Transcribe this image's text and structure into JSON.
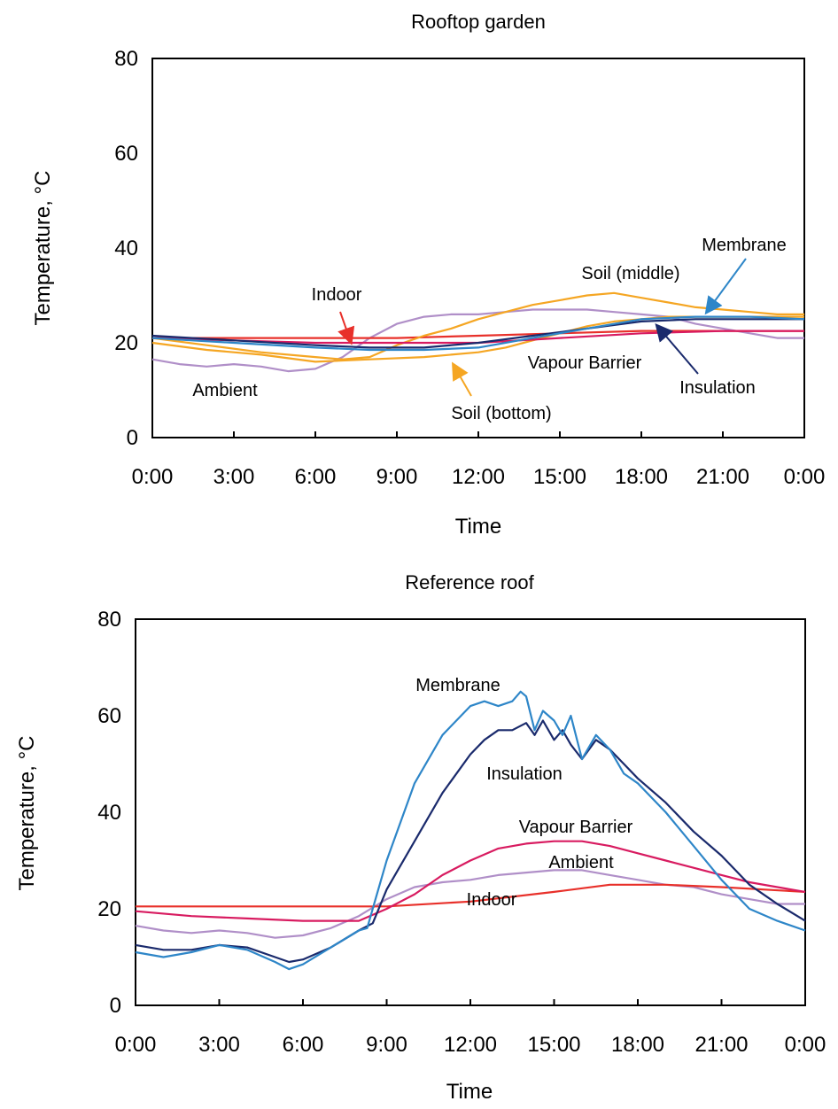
{
  "chart_data": [
    {
      "type": "line",
      "title": "Rooftop garden",
      "xlabel": "Time",
      "ylabel": "Temperature, °C",
      "ylim": [
        0,
        80
      ],
      "yticks": [
        "0",
        "20",
        "40",
        "60",
        "80"
      ],
      "xticks": [
        "0:00",
        "3:00",
        "6:00",
        "9:00",
        "12:00",
        "15:00",
        "18:00",
        "21:00",
        "0:00"
      ],
      "grid": false,
      "legend": "none (inline labels with arrows)",
      "series": [
        {
          "name": "Ambient",
          "color": "#b08fc8",
          "points": [
            [
              0,
              16.5
            ],
            [
              1,
              15.5
            ],
            [
              2,
              15
            ],
            [
              3,
              15.5
            ],
            [
              4,
              15
            ],
            [
              5,
              14
            ],
            [
              6,
              14.5
            ],
            [
              7,
              17
            ],
            [
              8,
              21
            ],
            [
              9,
              24
            ],
            [
              10,
              25.5
            ],
            [
              11,
              26
            ],
            [
              12,
              26
            ],
            [
              13,
              26.5
            ],
            [
              14,
              27
            ],
            [
              15,
              27
            ],
            [
              16,
              27
            ],
            [
              17,
              26.5
            ],
            [
              18,
              26
            ],
            [
              19,
              25.5
            ],
            [
              20,
              24
            ],
            [
              21,
              23
            ],
            [
              22,
              22
            ],
            [
              23,
              21
            ],
            [
              24,
              21
            ]
          ]
        },
        {
          "name": "Indoor",
          "color": "#e8302a",
          "points": [
            [
              0,
              21
            ],
            [
              3,
              21
            ],
            [
              6,
              21
            ],
            [
              9,
              21
            ],
            [
              12,
              21.5
            ],
            [
              15,
              22
            ],
            [
              18,
              22.5
            ],
            [
              21,
              22.5
            ],
            [
              24,
              22.5
            ]
          ]
        },
        {
          "name": "Soil (bottom)",
          "color": "#f5a623",
          "points": [
            [
              0,
              20
            ],
            [
              2,
              18.5
            ],
            [
              4,
              17.5
            ],
            [
              6,
              16
            ],
            [
              8,
              16.5
            ],
            [
              10,
              17
            ],
            [
              11,
              17.5
            ],
            [
              12,
              18
            ],
            [
              13,
              19
            ],
            [
              14,
              20.5
            ],
            [
              15,
              22
            ],
            [
              16,
              23.5
            ],
            [
              17,
              24.5
            ],
            [
              18,
              25
            ],
            [
              19,
              25.5
            ],
            [
              20,
              25.5
            ],
            [
              21,
              25.5
            ],
            [
              22,
              25.5
            ],
            [
              23,
              25.5
            ],
            [
              24,
              25.5
            ]
          ]
        },
        {
          "name": "Soil (middle)",
          "color": "#f5a623",
          "points": [
            [
              0,
              21
            ],
            [
              2,
              19.5
            ],
            [
              4,
              18
            ],
            [
              6,
              17
            ],
            [
              7,
              16.5
            ],
            [
              8,
              17
            ],
            [
              9,
              19.5
            ],
            [
              10,
              21.5
            ],
            [
              11,
              23
            ],
            [
              12,
              25
            ],
            [
              13,
              26.5
            ],
            [
              14,
              28
            ],
            [
              15,
              29
            ],
            [
              16,
              30
            ],
            [
              17,
              30.5
            ],
            [
              18,
              29.5
            ],
            [
              19,
              28.5
            ],
            [
              20,
              27.5
            ],
            [
              21,
              27
            ],
            [
              22,
              26.5
            ],
            [
              23,
              26
            ],
            [
              24,
              26
            ]
          ]
        },
        {
          "name": "Vapour Barrier",
          "color": "#d81b60",
          "points": [
            [
              0,
              21
            ],
            [
              3,
              20.5
            ],
            [
              6,
              20
            ],
            [
              9,
              20
            ],
            [
              12,
              20
            ],
            [
              15,
              21
            ],
            [
              18,
              22
            ],
            [
              21,
              22.5
            ],
            [
              24,
              22.5
            ]
          ]
        },
        {
          "name": "Insulation",
          "color": "#1a2a6c",
          "points": [
            [
              0,
              21.5
            ],
            [
              3,
              20.5
            ],
            [
              6,
              19.5
            ],
            [
              8,
              19
            ],
            [
              10,
              19
            ],
            [
              12,
              20
            ],
            [
              14,
              21.5
            ],
            [
              16,
              23
            ],
            [
              18,
              24.5
            ],
            [
              20,
              25
            ],
            [
              22,
              25
            ],
            [
              24,
              25
            ]
          ]
        },
        {
          "name": "Membrane",
          "color": "#2e86c8",
          "points": [
            [
              0,
              21
            ],
            [
              3,
              20
            ],
            [
              6,
              19
            ],
            [
              8,
              18.5
            ],
            [
              10,
              18.5
            ],
            [
              12,
              19
            ],
            [
              14,
              21
            ],
            [
              16,
              23
            ],
            [
              18,
              25
            ],
            [
              20,
              25.5
            ],
            [
              22,
              25.5
            ],
            [
              24,
              25
            ]
          ]
        }
      ],
      "annotations": [
        {
          "text": "Indoor",
          "series": "Indoor",
          "x": 7.3,
          "y": 21
        },
        {
          "text": "Soil (middle)",
          "series": "Soil (middle)",
          "x": null,
          "y": null
        },
        {
          "text": "Membrane",
          "series": "Membrane",
          "x": 20.2,
          "y": 25.5
        },
        {
          "text": "Ambient",
          "series": "Ambient",
          "x": null,
          "y": null
        },
        {
          "text": "Soil (bottom)",
          "series": "Soil (bottom)",
          "x": 11,
          "y": 17.5
        },
        {
          "text": "Vapour Barrier",
          "series": "Vapour Barrier",
          "x": null,
          "y": null
        },
        {
          "text": "Insulation",
          "series": "Insulation",
          "x": 18.7,
          "y": 24.5
        }
      ]
    },
    {
      "type": "line",
      "title": "Reference roof",
      "xlabel": "Time",
      "ylabel": "Temperature, °C",
      "ylim": [
        0,
        80
      ],
      "yticks": [
        "0",
        "20",
        "40",
        "60",
        "80"
      ],
      "xticks": [
        "0:00",
        "3:00",
        "6:00",
        "9:00",
        "12:00",
        "15:00",
        "18:00",
        "21:00",
        "0:00"
      ],
      "grid": false,
      "legend": "none (inline labels)",
      "series": [
        {
          "name": "Ambient",
          "color": "#b08fc8",
          "points": [
            [
              0,
              16.5
            ],
            [
              1,
              15.5
            ],
            [
              2,
              15
            ],
            [
              3,
              15.5
            ],
            [
              4,
              15
            ],
            [
              5,
              14
            ],
            [
              6,
              14.5
            ],
            [
              7,
              16
            ],
            [
              8,
              18.5
            ],
            [
              9,
              22
            ],
            [
              10,
              24.5
            ],
            [
              11,
              25.5
            ],
            [
              12,
              26
            ],
            [
              13,
              27
            ],
            [
              14,
              27.5
            ],
            [
              15,
              28
            ],
            [
              16,
              28
            ],
            [
              17,
              27
            ],
            [
              18,
              26
            ],
            [
              19,
              25
            ],
            [
              20,
              24.5
            ],
            [
              21,
              23
            ],
            [
              22,
              22
            ],
            [
              23,
              21
            ],
            [
              24,
              21
            ]
          ]
        },
        {
          "name": "Indoor",
          "color": "#e8302a",
          "points": [
            [
              0,
              20.5
            ],
            [
              3,
              20.5
            ],
            [
              6,
              20.5
            ],
            [
              9,
              20.5
            ],
            [
              12,
              21.5
            ],
            [
              15,
              23.5
            ],
            [
              17,
              25
            ],
            [
              19,
              25
            ],
            [
              21,
              24.5
            ],
            [
              24,
              23.5
            ]
          ]
        },
        {
          "name": "Vapour Barrier",
          "color": "#d81b60",
          "points": [
            [
              0,
              19.5
            ],
            [
              2,
              18.5
            ],
            [
              4,
              18
            ],
            [
              6,
              17.5
            ],
            [
              8,
              17.5
            ],
            [
              9,
              20
            ],
            [
              10,
              23
            ],
            [
              11,
              27
            ],
            [
              12,
              30
            ],
            [
              13,
              32.5
            ],
            [
              14,
              33.5
            ],
            [
              15,
              34
            ],
            [
              16,
              34
            ],
            [
              17,
              33
            ],
            [
              18,
              31.5
            ],
            [
              19,
              30
            ],
            [
              20,
              28.5
            ],
            [
              21,
              27
            ],
            [
              22,
              25.5
            ],
            [
              23,
              24.5
            ],
            [
              24,
              23.5
            ]
          ]
        },
        {
          "name": "Insulation",
          "color": "#1a2a6c",
          "points": [
            [
              0,
              12.5
            ],
            [
              1,
              11.5
            ],
            [
              2,
              11.5
            ],
            [
              3,
              12.5
            ],
            [
              4,
              12
            ],
            [
              5,
              10
            ],
            [
              5.5,
              9
            ],
            [
              6,
              9.5
            ],
            [
              7,
              12
            ],
            [
              8,
              15.5
            ],
            [
              8.5,
              17
            ],
            [
              9,
              24
            ],
            [
              10,
              34
            ],
            [
              11,
              44
            ],
            [
              12,
              52
            ],
            [
              12.5,
              55
            ],
            [
              13,
              57
            ],
            [
              13.5,
              57
            ],
            [
              14,
              58.5
            ],
            [
              14.3,
              56
            ],
            [
              14.6,
              59
            ],
            [
              15,
              55
            ],
            [
              15.3,
              57
            ],
            [
              15.6,
              54
            ],
            [
              16,
              51
            ],
            [
              16.5,
              55
            ],
            [
              17,
              53
            ],
            [
              17.5,
              50
            ],
            [
              18,
              47
            ],
            [
              19,
              42
            ],
            [
              20,
              36
            ],
            [
              21,
              31
            ],
            [
              22,
              25
            ],
            [
              23,
              21
            ],
            [
              24,
              17.5
            ]
          ]
        },
        {
          "name": "Membrane",
          "color": "#2e86c8",
          "points": [
            [
              0,
              11
            ],
            [
              1,
              10
            ],
            [
              2,
              11
            ],
            [
              3,
              12.5
            ],
            [
              4,
              11.5
            ],
            [
              5,
              9
            ],
            [
              5.5,
              7.5
            ],
            [
              6,
              8.5
            ],
            [
              7,
              12
            ],
            [
              8,
              15.5
            ],
            [
              8.3,
              16
            ],
            [
              8.6,
              22
            ],
            [
              9,
              30
            ],
            [
              10,
              46
            ],
            [
              11,
              56
            ],
            [
              12,
              62
            ],
            [
              12.5,
              63
            ],
            [
              13,
              62
            ],
            [
              13.5,
              63
            ],
            [
              13.8,
              65
            ],
            [
              14,
              64
            ],
            [
              14.3,
              57
            ],
            [
              14.6,
              61
            ],
            [
              15,
              59
            ],
            [
              15.3,
              56
            ],
            [
              15.6,
              60
            ],
            [
              16,
              51
            ],
            [
              16.5,
              56
            ],
            [
              17,
              53
            ],
            [
              17.5,
              48
            ],
            [
              18,
              46
            ],
            [
              19,
              40
            ],
            [
              20,
              33
            ],
            [
              21,
              26
            ],
            [
              22,
              20
            ],
            [
              23,
              17.5
            ],
            [
              24,
              15.5
            ]
          ]
        }
      ],
      "annotations": [
        {
          "text": "Membrane",
          "series": "Membrane"
        },
        {
          "text": "Insulation",
          "series": "Insulation"
        },
        {
          "text": "Vapour Barrier",
          "series": "Vapour Barrier"
        },
        {
          "text": "Ambient",
          "series": "Ambient"
        },
        {
          "text": "Indoor",
          "series": "Indoor"
        }
      ]
    }
  ]
}
